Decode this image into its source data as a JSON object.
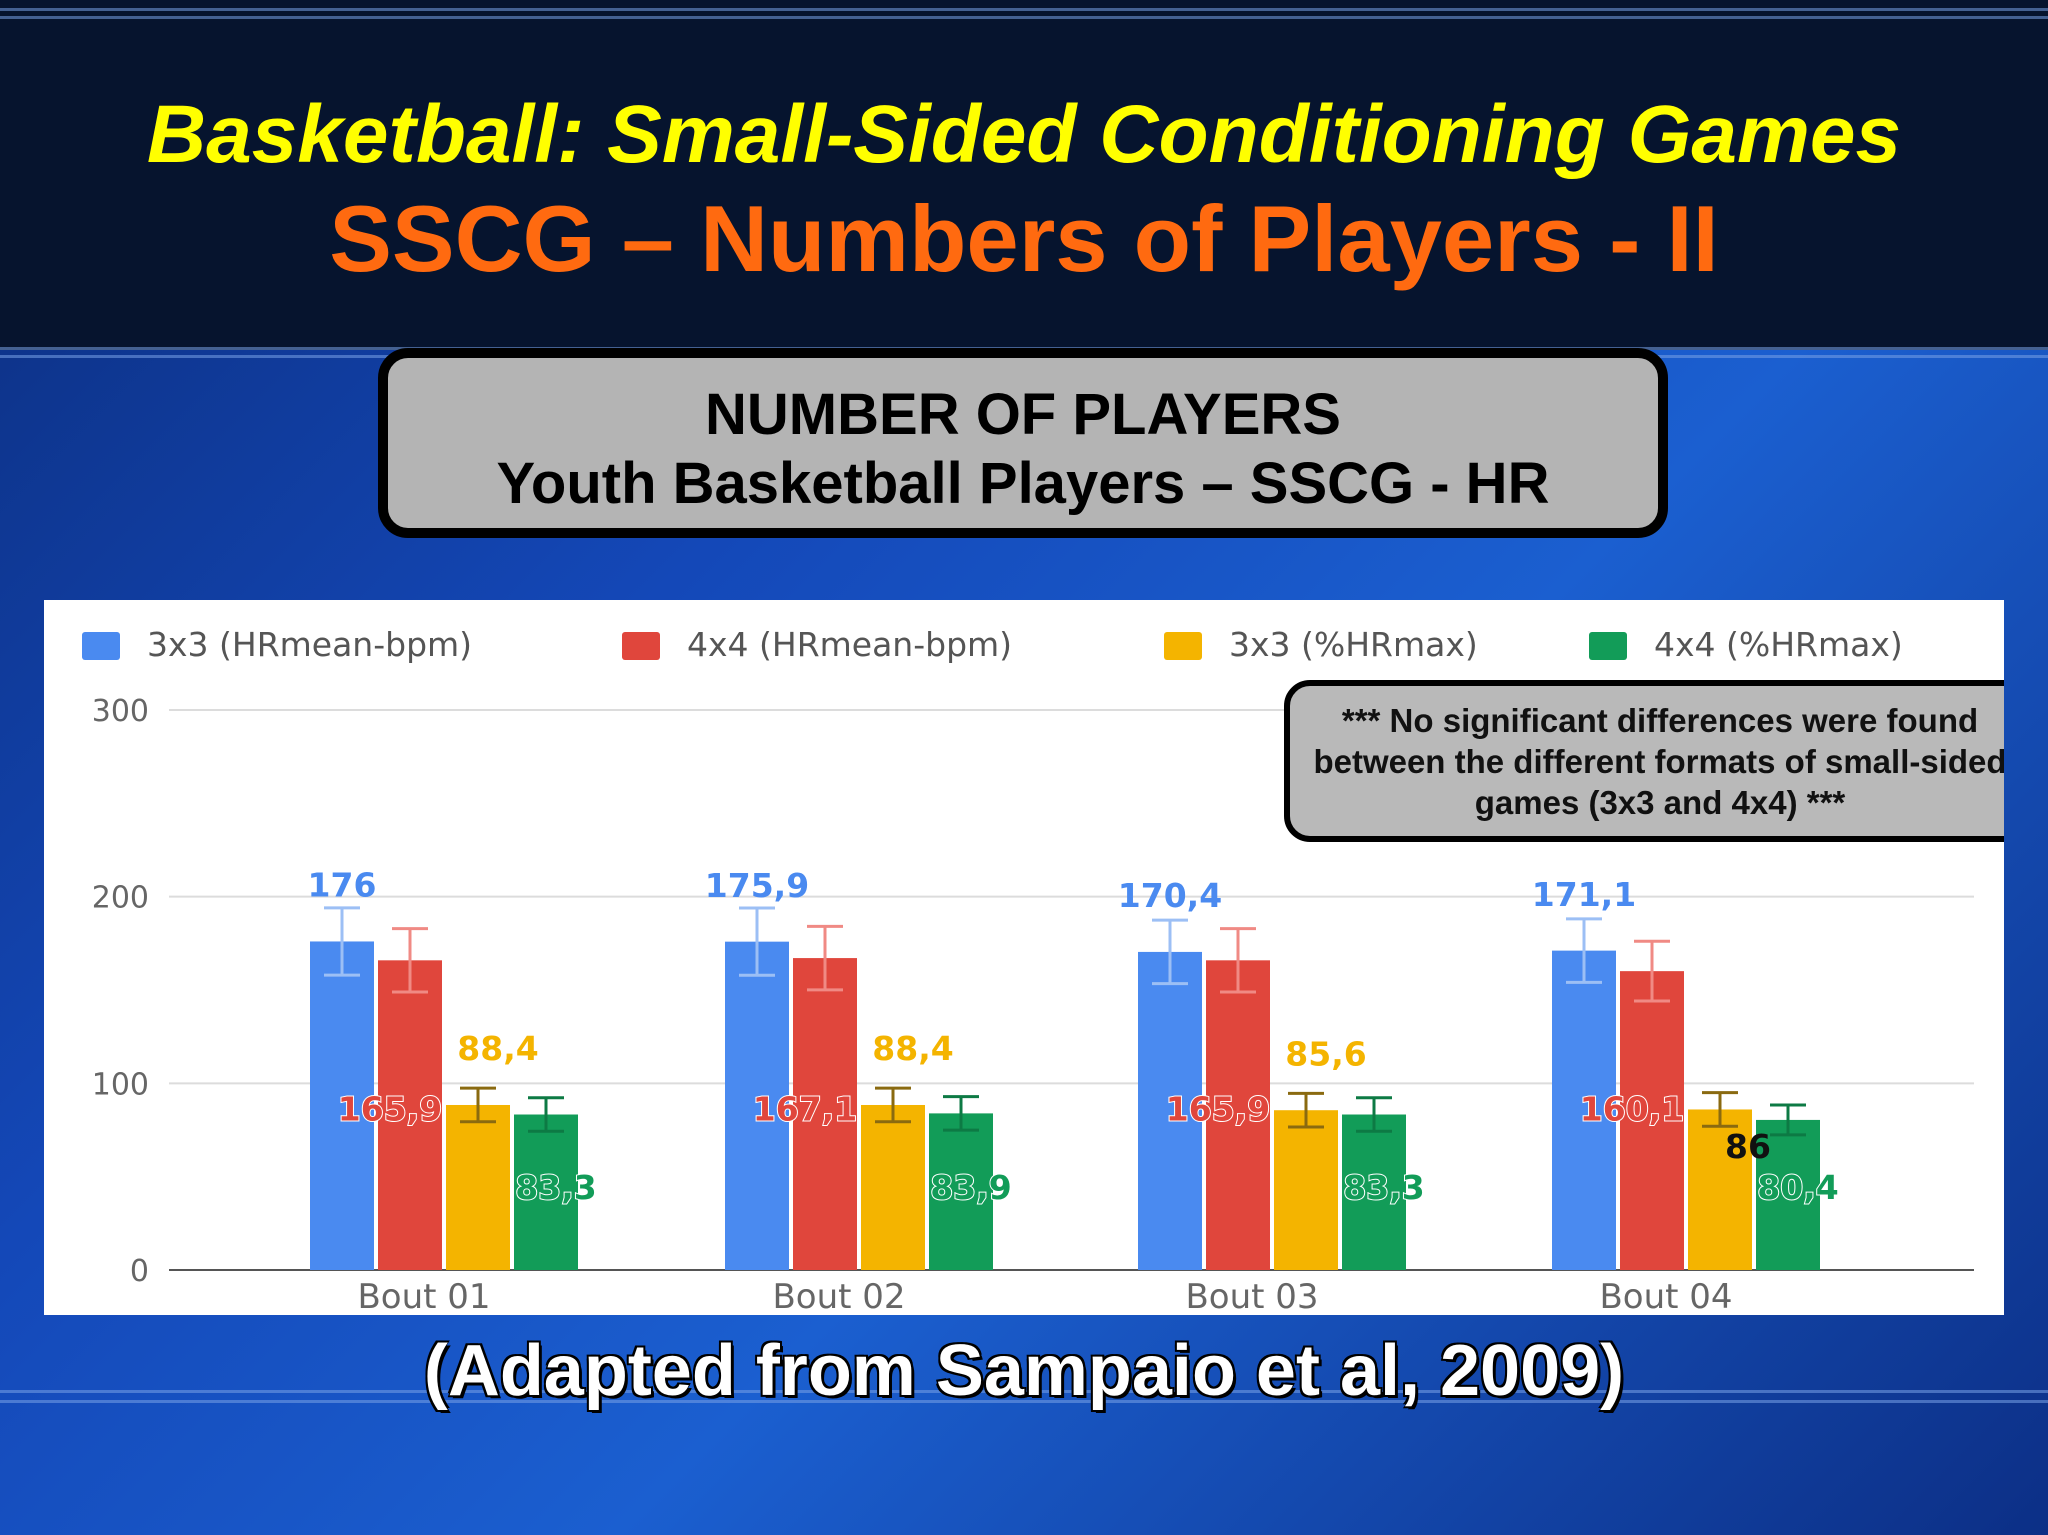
{
  "slide": {
    "title_line1": "Basketball: Small-Sided Conditioning Games",
    "title_line2": "SSCG – Numbers of Players - II",
    "banner_line1": "NUMBER OF PLAYERS",
    "banner_line2": "Youth Basketball Players – SSCG - HR",
    "note": "*** No significant differences were found between the different formats of small-sided games (3x3 and 4x4) ***",
    "citation": "(Adapted from Sampaio et al, 2009)"
  },
  "colors": {
    "title_yellow": "#ffff00",
    "title_orange": "#ff6a10",
    "series": [
      "#4a8af0",
      "#e0463c",
      "#f4b400",
      "#129c58"
    ],
    "series_label": [
      "#4a8af0",
      "#e0463c",
      "#f4b400",
      "#129c58"
    ]
  },
  "chart_data": {
    "type": "bar",
    "title": "",
    "xlabel": "",
    "ylabel": "",
    "ylim": [
      0,
      300
    ],
    "yticks": [
      0,
      100,
      200,
      300
    ],
    "grid": true,
    "legend": "top",
    "categories": [
      "Bout 01",
      "Bout 02",
      "Bout 03",
      "Bout 04"
    ],
    "series": [
      {
        "name": "3x3 (HRmean-bpm)",
        "values": [
          176,
          175.9,
          170.4,
          171.1
        ],
        "labels": [
          "176",
          "175,9",
          "170,4",
          "171,1"
        ],
        "error": [
          18,
          18,
          17,
          17
        ]
      },
      {
        "name": "4x4 (HRmean-bpm)",
        "values": [
          165.9,
          167.1,
          165.9,
          160.1
        ],
        "labels": [
          "165,9",
          "167,1",
          "165,9",
          "160,1"
        ],
        "error": [
          17,
          17,
          17,
          16
        ]
      },
      {
        "name": "3x3 (%HRmax)",
        "values": [
          88.4,
          88.4,
          85.6,
          86
        ],
        "labels": [
          "88,4",
          "88,4",
          "85,6",
          "86"
        ],
        "error": [
          9,
          9,
          9,
          9
        ]
      },
      {
        "name": "4x4 (%HRmax)",
        "values": [
          83.3,
          83.9,
          83.3,
          80.4
        ],
        "labels": [
          "83,3",
          "83,9",
          "83,3",
          "80,4"
        ],
        "error": [
          9,
          9,
          9,
          8
        ]
      }
    ]
  }
}
